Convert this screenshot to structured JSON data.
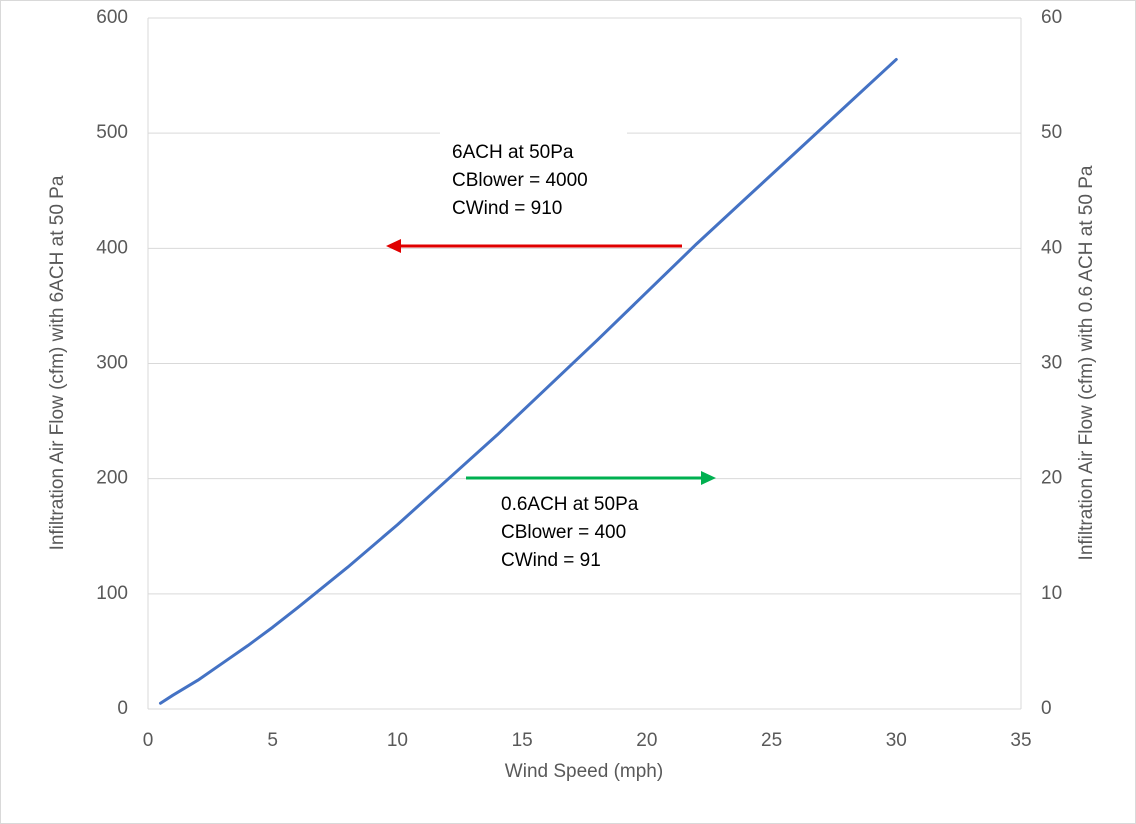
{
  "chart_data": {
    "type": "line",
    "x_label": "Wind Speed (mph)",
    "y_label": "Infiltration Air Flow (cfm) with 6ACH at 50 Pa",
    "y2_label": "Infiltration Air Flow (cfm) with 0.6 ACH at 50 Pa",
    "x": [
      0.5,
      1,
      2,
      3,
      4,
      5,
      6,
      8,
      10,
      12,
      14,
      16,
      18,
      20,
      22,
      24,
      26,
      28,
      30
    ],
    "series": [
      {
        "color": "#4472c4",
        "values": [
          5,
          12,
          25,
          40,
          55,
          71,
          88,
          123,
          160,
          199,
          238,
          279,
          320,
          362,
          404,
          444,
          484,
          524,
          564
        ]
      }
    ],
    "xlim": [
      0,
      35
    ],
    "xticks": [
      0,
      5,
      10,
      15,
      20,
      25,
      30,
      35
    ],
    "ylim": [
      0,
      600
    ],
    "yticks": [
      0,
      100,
      200,
      300,
      400,
      500,
      600
    ],
    "y2lim": [
      0,
      60
    ],
    "y2ticks": [
      0,
      10,
      20,
      30,
      40,
      50,
      60
    ],
    "grid": true,
    "annotations": [
      {
        "lines": [
          "6ACH at 50Pa",
          "CBlower = 4000",
          "CWind = 910"
        ]
      },
      {
        "lines": [
          "0.6ACH at 50Pa",
          "CBlower = 400",
          "CWind = 91"
        ]
      }
    ]
  }
}
